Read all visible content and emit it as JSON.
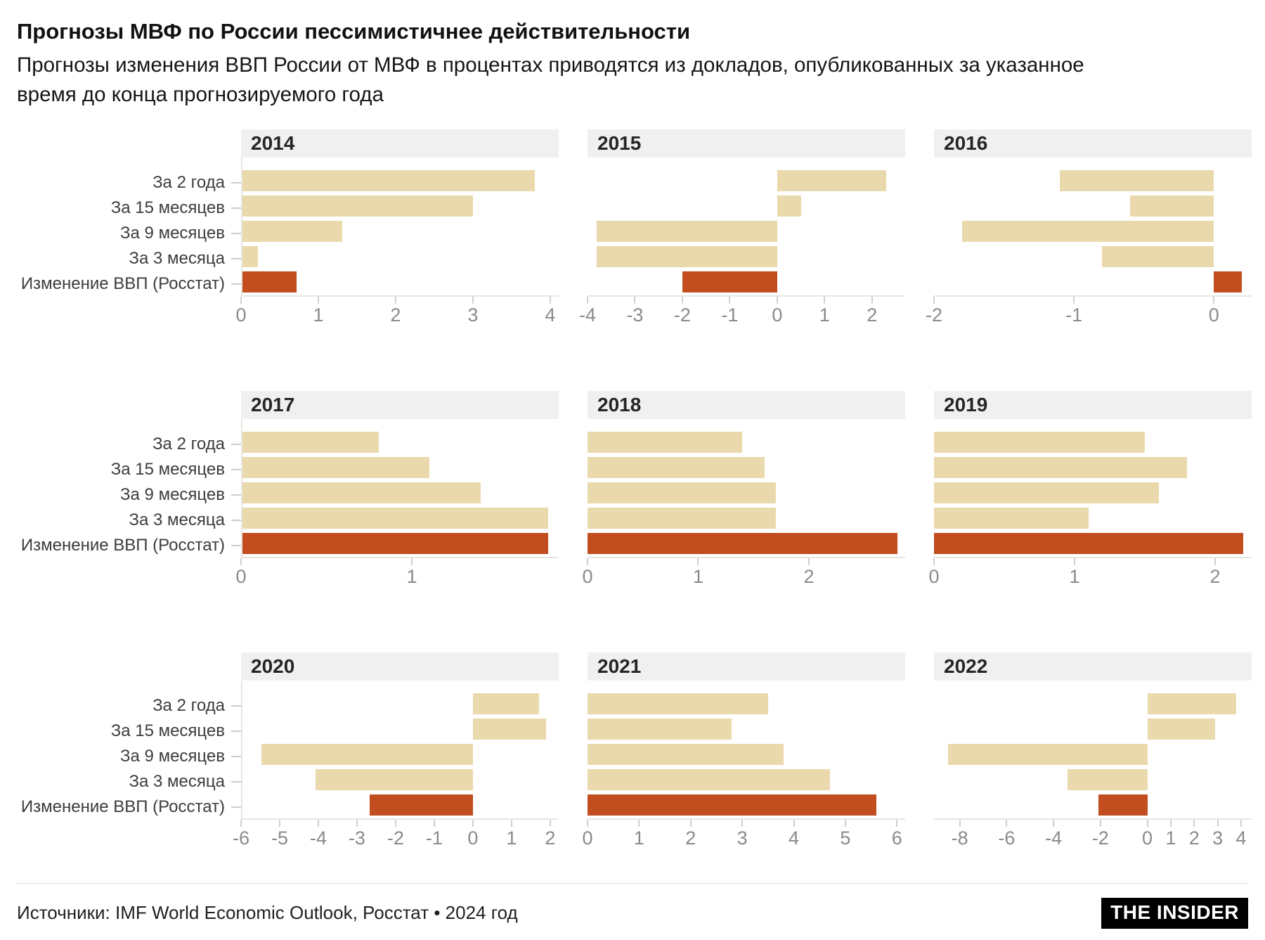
{
  "header": {
    "title": "Прогнозы МВФ по России пессимистичнее действительности",
    "subtitle_line1": "Прогнозы изменения ВВП России от МВФ в процентах приводятся из докладов, опубликованных за указанное",
    "subtitle_line2": "время до конца прогнозируемого года"
  },
  "footer": {
    "source": "Источники: IMF World Economic Outlook, Росстат • 2024 год",
    "logo": "THE INSIDER"
  },
  "chart_data": {
    "type": "bar",
    "orientation": "horizontal",
    "unit": "percent GDP change",
    "grid": "3x3 small multiples by year",
    "categories": [
      "За 2 года",
      "За 15 месяцев",
      "За 9 месяцев",
      "За 3 месяца",
      "Изменение ВВП (Росстат)"
    ],
    "bar_colors": {
      "forecast": "#EAD9AC",
      "actual": "#C24D1E"
    },
    "header_bg": "#F0F0F0",
    "panels": [
      {
        "year": "2014",
        "values": [
          3.8,
          3.0,
          1.3,
          0.2,
          0.7
        ],
        "axis": {
          "min": 0,
          "max": 4.11,
          "ticks": [
            0,
            1,
            2,
            3,
            4
          ]
        }
      },
      {
        "year": "2015",
        "values": [
          2.3,
          0.5,
          -3.8,
          -3.8,
          -2.0
        ],
        "axis": {
          "min": -4,
          "max": 2.7,
          "ticks": [
            -4,
            -3,
            -2,
            -1,
            0,
            1,
            2
          ]
        }
      },
      {
        "year": "2016",
        "values": [
          -1.1,
          -0.6,
          -1.8,
          -0.8,
          0.2
        ],
        "axis": {
          "min": -2,
          "max": 0.27,
          "ticks": [
            -2,
            -1,
            0
          ]
        }
      },
      {
        "year": "2017",
        "values": [
          0.8,
          1.1,
          1.4,
          1.8,
          1.8
        ],
        "axis": {
          "min": 0,
          "max": 1.86,
          "ticks": [
            0,
            1
          ]
        }
      },
      {
        "year": "2018",
        "values": [
          1.4,
          1.6,
          1.7,
          1.7,
          2.8
        ],
        "axis": {
          "min": 0,
          "max": 2.87,
          "ticks": [
            0,
            1,
            2
          ]
        }
      },
      {
        "year": "2019",
        "values": [
          1.5,
          1.8,
          1.6,
          1.1,
          2.2
        ],
        "axis": {
          "min": 0,
          "max": 2.26,
          "ticks": [
            0,
            1,
            2
          ]
        }
      },
      {
        "year": "2020",
        "values": [
          1.7,
          1.9,
          -5.5,
          -4.1,
          -2.7
        ],
        "axis": {
          "min": -6,
          "max": 2.22,
          "ticks": [
            -6,
            -5,
            -4,
            -3,
            -2,
            -1,
            0,
            1,
            2
          ]
        }
      },
      {
        "year": "2021",
        "values": [
          3.5,
          2.8,
          3.8,
          4.7,
          5.6
        ],
        "axis": {
          "min": 0,
          "max": 6.16,
          "ticks": [
            0,
            1,
            2,
            3,
            4,
            5,
            6
          ]
        }
      },
      {
        "year": "2022",
        "values": [
          3.8,
          2.9,
          -8.5,
          -3.4,
          -2.1
        ],
        "axis": {
          "min": -9.1,
          "max": 4.45,
          "ticks": [
            -8,
            -6,
            -4,
            -2,
            0,
            1,
            2,
            3,
            4
          ]
        }
      }
    ]
  }
}
